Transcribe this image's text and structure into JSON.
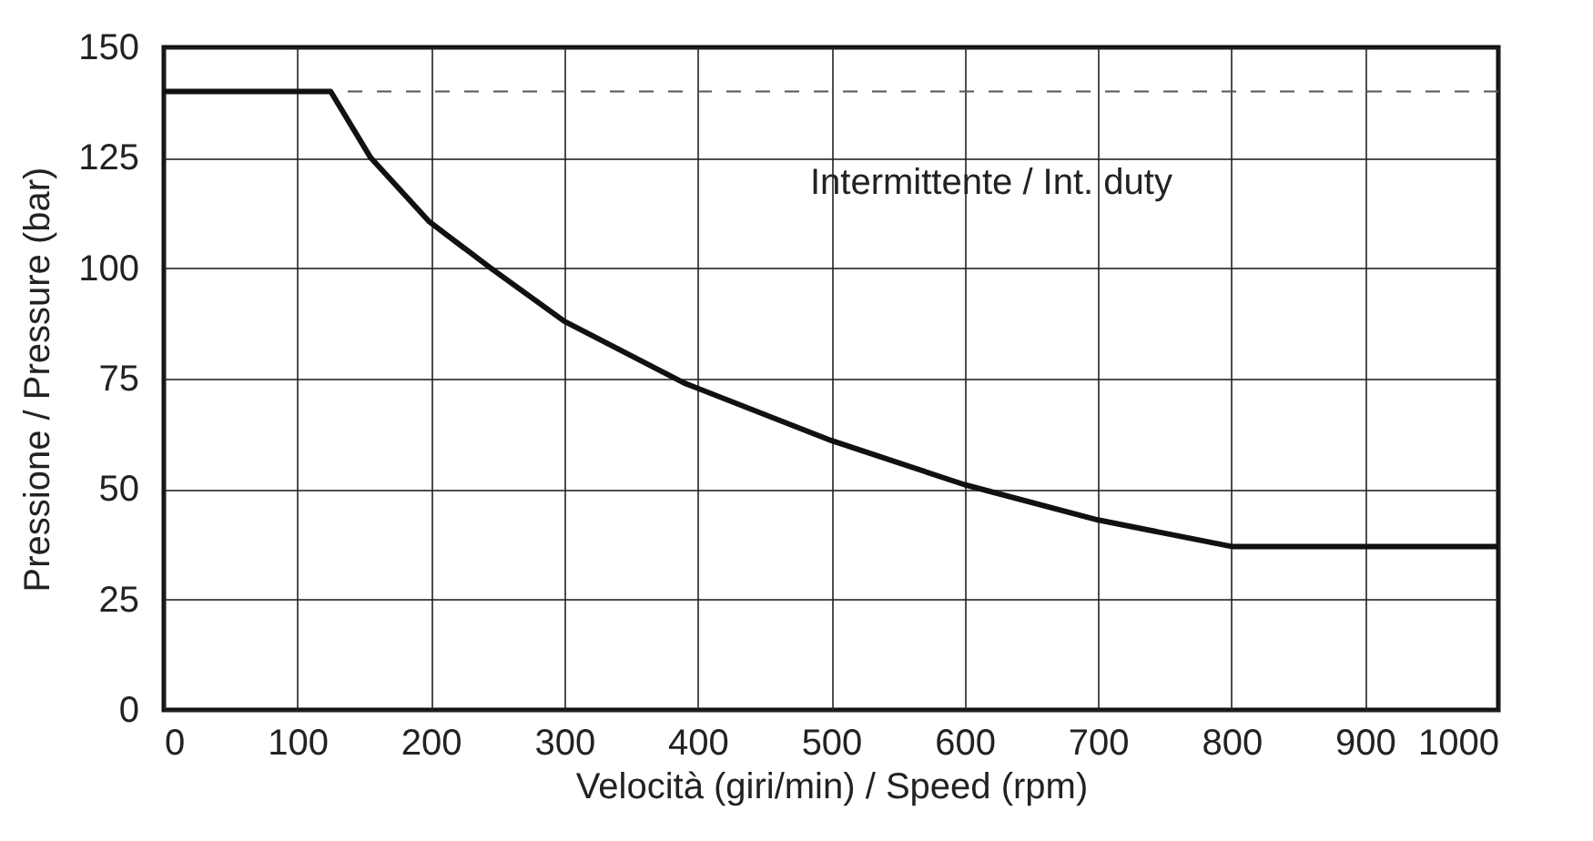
{
  "chart_data": {
    "type": "line",
    "xlabel": "Velocità (giri/min)  /  Speed (rpm)",
    "ylabel": "Pressione  /  Pressure (bar)",
    "x": [
      0,
      125,
      155,
      199,
      245,
      300,
      390,
      500,
      600,
      700,
      800,
      1000
    ],
    "series": [
      {
        "color": "#111111",
        "values": [
          140,
          140,
          125,
          110.5,
          100,
          88,
          74,
          61,
          51,
          43,
          37,
          37
        ]
      }
    ],
    "xlim": [
      0,
      1000
    ],
    "xticks": [
      0,
      100,
      200,
      300,
      400,
      500,
      600,
      700,
      800,
      900,
      1000
    ],
    "ylim": [
      0,
      150
    ],
    "yticks": [
      0,
      25,
      50,
      75,
      100,
      125,
      150
    ],
    "grid": true,
    "line_style": "solid",
    "marker": "none",
    "ref_lines": [
      {
        "axis": "y",
        "value": 140,
        "label": "Intermittente  /  Int. duty",
        "color": "#555555",
        "line_style": "dashed"
      }
    ]
  }
}
